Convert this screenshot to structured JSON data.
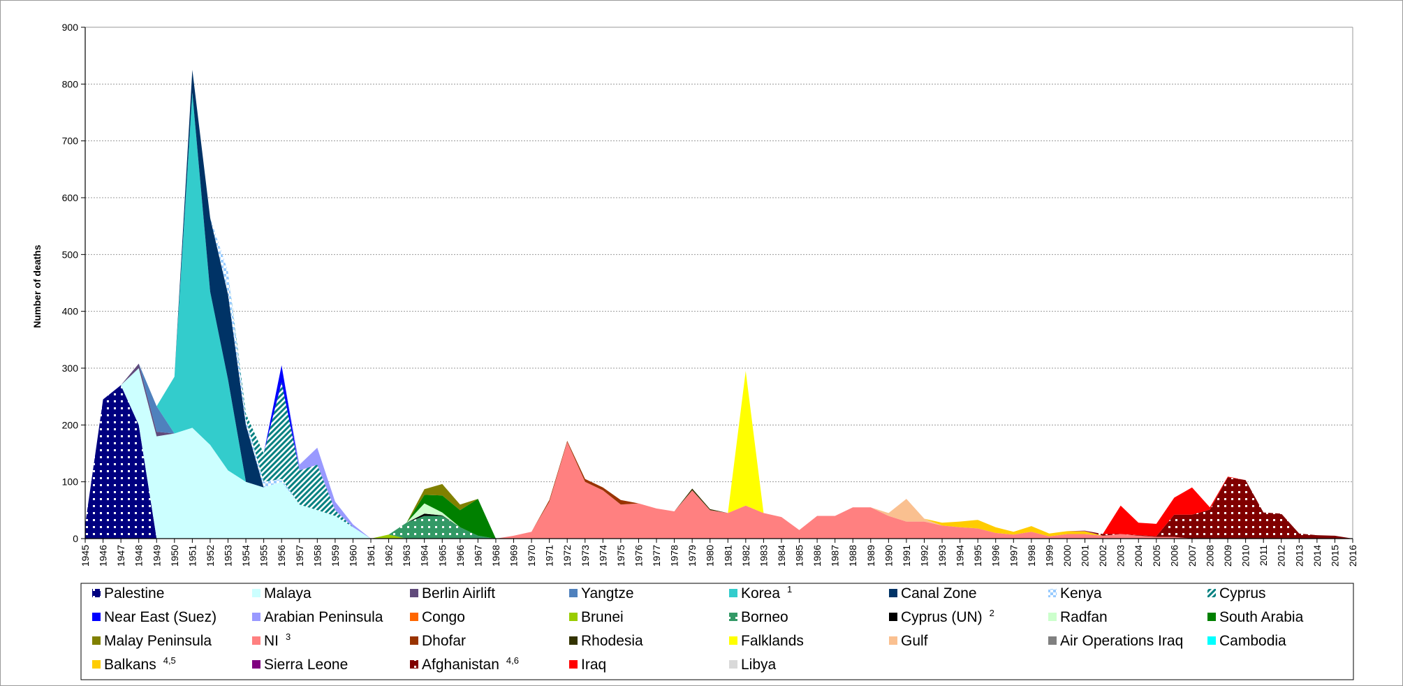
{
  "chart_data": {
    "type": "area",
    "stacked": true,
    "ylabel": "Number of deaths",
    "xlabel": "",
    "ylim": [
      0,
      900
    ],
    "yticks": [
      0,
      100,
      200,
      300,
      400,
      500,
      600,
      700,
      800,
      900
    ],
    "xlim": [
      1945,
      2016
    ],
    "grid": true,
    "legend_position": "bottom",
    "series": [
      {
        "name": "Palestine",
        "sup": "",
        "color": "#000080",
        "pattern": "dots-white",
        "points": [
          [
            1945,
            25
          ],
          [
            1946,
            245
          ],
          [
            1947,
            270
          ],
          [
            1948,
            200
          ],
          [
            1949,
            0
          ]
        ]
      },
      {
        "name": "Malaya",
        "sup": "",
        "color": "#ccffff",
        "pattern": "",
        "points": [
          [
            1945,
            0
          ],
          [
            1946,
            0
          ],
          [
            1947,
            0
          ],
          [
            1948,
            100
          ],
          [
            1949,
            180
          ],
          [
            1950,
            185
          ],
          [
            1951,
            195
          ],
          [
            1952,
            165
          ],
          [
            1953,
            120
          ],
          [
            1954,
            100
          ],
          [
            1955,
            90
          ],
          [
            1956,
            100
          ],
          [
            1957,
            60
          ],
          [
            1958,
            50
          ],
          [
            1959,
            40
          ],
          [
            1960,
            20
          ],
          [
            1961,
            0
          ]
        ]
      },
      {
        "name": "Berlin Airlift",
        "sup": "",
        "color": "#604a7b",
        "pattern": "",
        "points": [
          [
            1947,
            0
          ],
          [
            1948,
            8
          ],
          [
            1949,
            8
          ],
          [
            1950,
            0
          ]
        ]
      },
      {
        "name": "Yangtze",
        "sup": "",
        "color": "#4f81bd",
        "pattern": "",
        "points": [
          [
            1948,
            0
          ],
          [
            1949,
            45
          ],
          [
            1950,
            0
          ]
        ]
      },
      {
        "name": "Korea",
        "sup": "1",
        "color": "#33cccc",
        "pattern": "",
        "points": [
          [
            1949,
            0
          ],
          [
            1950,
            100
          ],
          [
            1951,
            590
          ],
          [
            1952,
            270
          ],
          [
            1953,
            160
          ],
          [
            1954,
            0
          ]
        ]
      },
      {
        "name": "Canal Zone",
        "sup": "",
        "color": "#003366",
        "pattern": "",
        "points": [
          [
            1950,
            0
          ],
          [
            1951,
            40
          ],
          [
            1952,
            130
          ],
          [
            1953,
            150
          ],
          [
            1954,
            100
          ],
          [
            1955,
            0
          ]
        ]
      },
      {
        "name": "Kenya",
        "sup": "",
        "color": "#99ccff",
        "pattern": "checker",
        "points": [
          [
            1951,
            0
          ],
          [
            1952,
            0
          ],
          [
            1953,
            40
          ],
          [
            1954,
            10
          ],
          [
            1955,
            10
          ],
          [
            1956,
            5
          ],
          [
            1957,
            0
          ]
        ]
      },
      {
        "name": "Cyprus",
        "sup": "",
        "color": "#008080",
        "pattern": "diag",
        "points": [
          [
            1953,
            0
          ],
          [
            1954,
            10
          ],
          [
            1955,
            50
          ],
          [
            1956,
            170
          ],
          [
            1957,
            60
          ],
          [
            1958,
            80
          ],
          [
            1959,
            10
          ],
          [
            1960,
            0
          ]
        ]
      },
      {
        "name": "Near East (Suez)",
        "sup": "",
        "color": "#0000ff",
        "pattern": "",
        "points": [
          [
            1955,
            0
          ],
          [
            1956,
            30
          ],
          [
            1957,
            0
          ]
        ]
      },
      {
        "name": "Arabian Peninsula",
        "sup": "",
        "color": "#9999ff",
        "pattern": "",
        "points": [
          [
            1956,
            0
          ],
          [
            1957,
            10
          ],
          [
            1958,
            30
          ],
          [
            1959,
            15
          ],
          [
            1960,
            5
          ],
          [
            1961,
            0
          ]
        ]
      },
      {
        "name": "Congo",
        "sup": "",
        "color": "#ff6600",
        "pattern": "",
        "points": []
      },
      {
        "name": "Brunei",
        "sup": "",
        "color": "#99cc00",
        "pattern": "",
        "points": [
          [
            1961,
            0
          ],
          [
            1962,
            7
          ],
          [
            1963,
            0
          ]
        ]
      },
      {
        "name": "Borneo",
        "sup": "",
        "color": "#339966",
        "pattern": "dots-white",
        "points": [
          [
            1962,
            0
          ],
          [
            1963,
            28
          ],
          [
            1964,
            40
          ],
          [
            1965,
            40
          ],
          [
            1966,
            20
          ],
          [
            1967,
            5
          ],
          [
            1968,
            0
          ]
        ]
      },
      {
        "name": "Cyprus (UN)",
        "sup": "2",
        "color": "#000000",
        "pattern": "",
        "points": [
          [
            1963,
            0
          ],
          [
            1964,
            4
          ],
          [
            1965,
            1
          ],
          [
            1966,
            0
          ]
        ]
      },
      {
        "name": "Radfan",
        "sup": "",
        "color": "#ccffcc",
        "pattern": "",
        "points": [
          [
            1963,
            0
          ],
          [
            1964,
            18
          ],
          [
            1965,
            5
          ],
          [
            1966,
            0
          ]
        ]
      },
      {
        "name": "South Arabia",
        "sup": "",
        "color": "#008000",
        "pattern": "",
        "points": [
          [
            1963,
            0
          ],
          [
            1964,
            15
          ],
          [
            1965,
            30
          ],
          [
            1966,
            30
          ],
          [
            1967,
            65
          ],
          [
            1968,
            0
          ]
        ]
      },
      {
        "name": "Malay Peninsula",
        "sup": "",
        "color": "#808000",
        "pattern": "",
        "points": [
          [
            1963,
            0
          ],
          [
            1964,
            10
          ],
          [
            1965,
            20
          ],
          [
            1966,
            10
          ],
          [
            1967,
            0
          ]
        ]
      },
      {
        "name": "NI",
        "sup": "3",
        "color": "#ff8080",
        "pattern": "",
        "points": [
          [
            1968,
            0
          ],
          [
            1969,
            5
          ],
          [
            1970,
            12
          ],
          [
            1971,
            65
          ],
          [
            1972,
            170
          ],
          [
            1973,
            100
          ],
          [
            1974,
            85
          ],
          [
            1975,
            60
          ],
          [
            1976,
            62
          ],
          [
            1977,
            53
          ],
          [
            1978,
            48
          ],
          [
            1979,
            85
          ],
          [
            1980,
            50
          ],
          [
            1981,
            45
          ],
          [
            1982,
            58
          ],
          [
            1983,
            45
          ],
          [
            1984,
            38
          ],
          [
            1985,
            15
          ],
          [
            1986,
            40
          ],
          [
            1987,
            40
          ],
          [
            1988,
            55
          ],
          [
            1989,
            55
          ],
          [
            1990,
            40
          ],
          [
            1991,
            30
          ],
          [
            1992,
            30
          ],
          [
            1993,
            23
          ],
          [
            1994,
            20
          ],
          [
            1995,
            18
          ],
          [
            1996,
            10
          ],
          [
            1997,
            7
          ],
          [
            1998,
            12
          ],
          [
            1999,
            4
          ],
          [
            2000,
            8
          ],
          [
            2001,
            8
          ],
          [
            2002,
            5
          ],
          [
            2003,
            8
          ],
          [
            2004,
            5
          ],
          [
            2005,
            3
          ],
          [
            2006,
            3
          ],
          [
            2007,
            0
          ]
        ]
      },
      {
        "name": "Dhofar",
        "sup": "",
        "color": "#993300",
        "pattern": "",
        "points": [
          [
            1970,
            0
          ],
          [
            1971,
            3
          ],
          [
            1972,
            2
          ],
          [
            1973,
            5
          ],
          [
            1974,
            5
          ],
          [
            1975,
            8
          ],
          [
            1976,
            0
          ]
        ]
      },
      {
        "name": "Rhodesia",
        "sup": "",
        "color": "#333300",
        "pattern": "",
        "points": [
          [
            1978,
            0
          ],
          [
            1979,
            3
          ],
          [
            1980,
            2
          ],
          [
            1981,
            0
          ]
        ]
      },
      {
        "name": "Falklands",
        "sup": "",
        "color": "#ffff00",
        "pattern": "",
        "points": [
          [
            1981,
            0
          ],
          [
            1982,
            237
          ],
          [
            1983,
            0
          ]
        ]
      },
      {
        "name": "Gulf",
        "sup": "",
        "color": "#fac090",
        "pattern": "",
        "points": [
          [
            1989,
            0
          ],
          [
            1990,
            5
          ],
          [
            1991,
            40
          ],
          [
            1992,
            5
          ],
          [
            1993,
            0
          ]
        ]
      },
      {
        "name": "Air Operations Iraq",
        "sup": "",
        "color": "#808080",
        "pattern": "",
        "points": []
      },
      {
        "name": "Cambodia",
        "sup": "",
        "color": "#00ffff",
        "pattern": "",
        "points": []
      },
      {
        "name": "Balkans",
        "sup": "4,5",
        "color": "#ffcc00",
        "pattern": "",
        "points": [
          [
            1992,
            0
          ],
          [
            1993,
            5
          ],
          [
            1994,
            10
          ],
          [
            1995,
            15
          ],
          [
            1996,
            10
          ],
          [
            1997,
            5
          ],
          [
            1998,
            10
          ],
          [
            1999,
            5
          ],
          [
            2000,
            5
          ],
          [
            2001,
            5
          ],
          [
            2002,
            0
          ]
        ]
      },
      {
        "name": "Sierra Leone",
        "sup": "",
        "color": "#800080",
        "pattern": "",
        "points": [
          [
            2000,
            0
          ],
          [
            2001,
            1
          ],
          [
            2002,
            0
          ]
        ]
      },
      {
        "name": "Afghanistan",
        "sup": "4,6",
        "color": "#800000",
        "pattern": "dots-white",
        "points": [
          [
            2001,
            0
          ],
          [
            2002,
            3
          ],
          [
            2003,
            0
          ],
          [
            2004,
            1
          ],
          [
            2005,
            1
          ],
          [
            2006,
            39
          ],
          [
            2007,
            42
          ],
          [
            2008,
            51
          ],
          [
            2009,
            108
          ],
          [
            2010,
            103
          ],
          [
            2011,
            46
          ],
          [
            2012,
            44
          ],
          [
            2013,
            9
          ],
          [
            2014,
            6
          ],
          [
            2015,
            5
          ],
          [
            2016,
            0
          ]
        ]
      },
      {
        "name": "Iraq",
        "sup": "",
        "color": "#ff0000",
        "pattern": "",
        "points": [
          [
            2002,
            0
          ],
          [
            2003,
            50
          ],
          [
            2004,
            22
          ],
          [
            2005,
            22
          ],
          [
            2006,
            30
          ],
          [
            2007,
            48
          ],
          [
            2008,
            4
          ],
          [
            2009,
            1
          ],
          [
            2010,
            0
          ]
        ]
      },
      {
        "name": "Libya",
        "sup": "",
        "color": "#d9d9d9",
        "pattern": "",
        "points": []
      }
    ]
  }
}
